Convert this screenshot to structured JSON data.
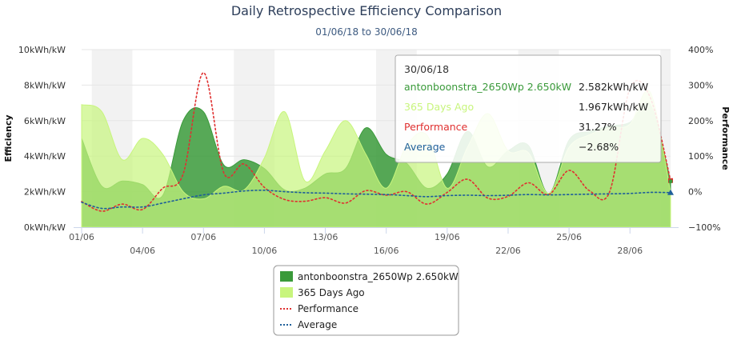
{
  "chart_data": {
    "type": "area",
    "title": "Daily Retrospective Efficiency Comparison",
    "subtitle": "01/06/18 to 30/06/18",
    "ylabel": "Efficiency",
    "y2label": "Performance",
    "ylim": [
      0,
      10
    ],
    "y2lim": [
      -100,
      400
    ],
    "yticks": [
      "0kWh/kW",
      "2kWh/kW",
      "4kWh/kW",
      "6kWh/kW",
      "8kWh/kW",
      "10kWh/kW"
    ],
    "y2ticks": [
      "−100%",
      "0%",
      "100%",
      "200%",
      "300%",
      "400%"
    ],
    "xticks": [
      "01/06",
      "04/06",
      "07/06",
      "10/06",
      "13/06",
      "16/06",
      "19/06",
      "22/06",
      "25/06",
      "28/06"
    ],
    "x": [
      1,
      2,
      3,
      4,
      5,
      6,
      7,
      8,
      9,
      10,
      11,
      12,
      13,
      14,
      15,
      16,
      17,
      18,
      19,
      20,
      21,
      22,
      23,
      24,
      25,
      26,
      27,
      28,
      29,
      30
    ],
    "series": [
      {
        "name": "antonboonstra_2650Wp 2.650kW",
        "kind": "area",
        "color": "#3a9a3a",
        "values": [
          5.0,
          2.3,
          2.6,
          2.4,
          1.8,
          6.0,
          6.5,
          3.5,
          3.8,
          3.3,
          2.1,
          2.2,
          3.0,
          3.3,
          5.6,
          4.1,
          3.6,
          2.2,
          3.0,
          5.4,
          3.4,
          4.3,
          4.6,
          1.9,
          4.9,
          5.4,
          5.7,
          5.9,
          6.9,
          2.58
        ]
      },
      {
        "name": "365 Days Ago",
        "kind": "area",
        "color": "#c8f57d",
        "values": [
          6.9,
          6.5,
          3.8,
          5.0,
          4.1,
          2.0,
          1.6,
          2.3,
          2.1,
          3.9,
          6.5,
          2.6,
          4.3,
          6.0,
          4.1,
          2.2,
          4.6,
          5.2,
          2.2,
          4.5,
          6.4,
          4.3,
          4.2,
          1.9,
          4.5,
          5.2,
          5.6,
          5.8,
          7.6,
          1.97
        ]
      },
      {
        "name": "Performance",
        "kind": "dotted",
        "color": "#e03030",
        "values": [
          -28,
          -55,
          -35,
          -50,
          10,
          50,
          335,
          53,
          78,
          12,
          -22,
          -27,
          -17,
          -32,
          3,
          -10,
          0,
          -35,
          -2,
          35,
          -18,
          -13,
          25,
          -8,
          60,
          3,
          0,
          290,
          265,
          31.27
        ]
      },
      {
        "name": "Average",
        "kind": "dotted",
        "color": "#1f5f9a",
        "values": [
          -30,
          -47,
          -43,
          -43,
          -32,
          -20,
          -9,
          -4,
          2,
          4,
          0,
          -3,
          -4,
          -6,
          -7,
          -8,
          -11,
          -14,
          -11,
          -10,
          -11,
          -10,
          -8,
          -9,
          -8,
          -7,
          -6,
          -5,
          -2,
          -2.68
        ]
      }
    ],
    "tooltip": {
      "date": "30/06/18",
      "rows": [
        {
          "label": "antonboonstra_2650Wp 2.650kW",
          "value": "2.582kWh/kW",
          "color": "#3a9a3a"
        },
        {
          "label": "365 Days Ago",
          "value": "1.967kWh/kW",
          "color": "#c8f57d"
        },
        {
          "label": "Performance",
          "value": "31.27%",
          "color": "#e03030"
        },
        {
          "label": "Average",
          "value": "−2.68%",
          "color": "#1f5f9a"
        }
      ]
    },
    "legend": {
      "position": "bottom",
      "items": [
        {
          "label": "antonboonstra_2650Wp 2.650kW",
          "symbol": "box",
          "color": "#3a9a3a"
        },
        {
          "label": "365 Days Ago",
          "symbol": "box",
          "color": "#c8f57d"
        },
        {
          "label": "Performance",
          "symbol": "dotted-line",
          "color": "#e03030"
        },
        {
          "label": "Average",
          "symbol": "dotted-line",
          "color": "#1f5f9a"
        }
      ]
    }
  }
}
